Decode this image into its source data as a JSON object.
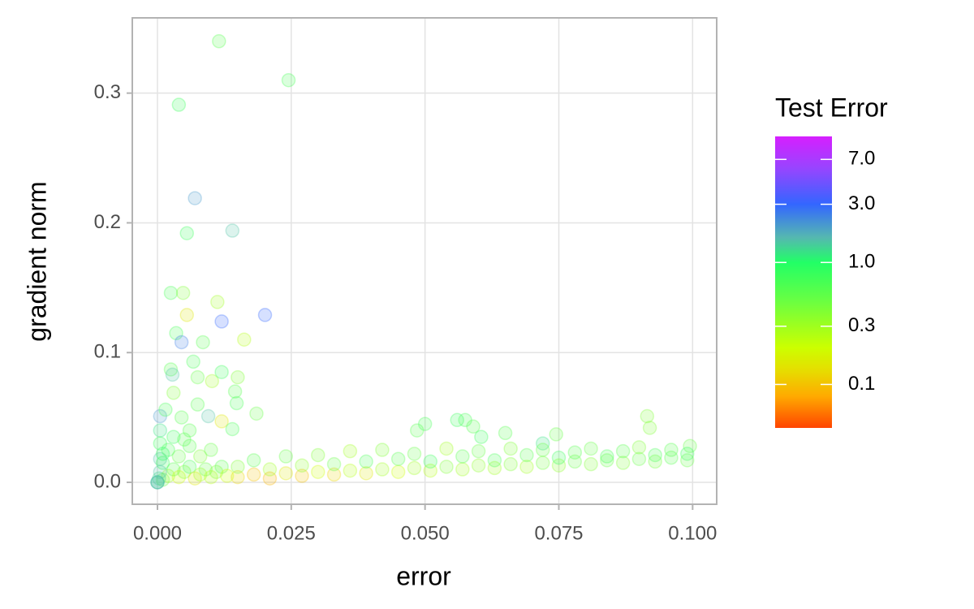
{
  "chart_data": {
    "type": "scatter",
    "x_label": "error",
    "y_label": "gradient norm",
    "legend_title": "Test Error",
    "xlim": [
      -0.0047,
      0.1045
    ],
    "ylim": [
      -0.0169,
      0.358
    ],
    "xticks": [
      {
        "value": 0,
        "label": "0.000"
      },
      0.025,
      {
        "value": 0.05,
        "label": "0.050"
      },
      0.075,
      {
        "value": 0.1,
        "label": "0.100"
      }
    ],
    "yticks": [
      {
        "value": 0,
        "label": "0.0"
      },
      0.1,
      0.2,
      0.3
    ],
    "grid": true,
    "color_log_scale": true,
    "color_lim": [
      0.044,
      10.8
    ],
    "color_ticks": [
      {
        "value": 7,
        "label": "7.0"
      },
      {
        "value": 3,
        "label": "3.0"
      },
      {
        "value": 1,
        "label": "1.0"
      },
      0.3,
      0.1
    ],
    "colorscale": [
      {
        "value": 0.044,
        "color": "#ff4400"
      },
      {
        "value": 0.08,
        "color": "#ffaa00"
      },
      {
        "value": 0.13,
        "color": "#e6dd00"
      },
      {
        "value": 0.2,
        "color": "#ccff00"
      },
      {
        "value": 0.5,
        "color": "#66ff44"
      },
      {
        "value": 1.0,
        "color": "#22ff66"
      },
      {
        "value": 1.6,
        "color": "#55b8b0"
      },
      {
        "value": 3.0,
        "color": "#3366ff"
      },
      {
        "value": 6.0,
        "color": "#9944ff"
      },
      {
        "value": 10.8,
        "color": "#d61fff"
      }
    ],
    "opacity": 0.2,
    "x": [
      0.0115,
      0.0245,
      0.004,
      0.007,
      0.0055,
      0.014,
      0.0025,
      0.0048,
      0.0055,
      0.0112,
      0.0201,
      0.012,
      0.0035,
      0.0045,
      0.0162,
      0.0067,
      0.0085,
      0.0025,
      0.0028,
      0.0075,
      0.0102,
      0.012,
      0.015,
      0.003,
      0.0145,
      0.0095,
      0.0005,
      0.0075,
      0.0148,
      0.0185,
      0.012,
      0.014,
      0.006,
      0.0045,
      0.0015,
      0.0005,
      0.0005,
      0.0005,
      0.0485,
      0.05,
      0.056,
      0.0575,
      0.059,
      0.0605,
      0.065,
      0.072,
      0.0745,
      0.0915,
      0.092,
      0.0995,
      0.015,
      0.018,
      0.021,
      0.024,
      0.027,
      0.03,
      0.033,
      0.036,
      0.039,
      0.042,
      0.045,
      0.048,
      0.051,
      0.054,
      0.057,
      0.06,
      0.063,
      0.066,
      0.069,
      0.072,
      0.075,
      0.078,
      0.081,
      0.084,
      0.087,
      0.09,
      0.093,
      0.096,
      0.099,
      0.015,
      0.018,
      0.021,
      0.024,
      0.027,
      0.03,
      0.033,
      0.036,
      0.039,
      0.042,
      0.045,
      0.048,
      0.051,
      0.054,
      0.057,
      0.06,
      0.063,
      0.066,
      0.069,
      0.072,
      0.075,
      0.078,
      0.081,
      0.084,
      0.087,
      0.09,
      0.093,
      0.096,
      0.099,
      0.001,
      0.002,
      0.003,
      0.001,
      0.004,
      0.005,
      0.006,
      0.007,
      0.008,
      0.009,
      0.01,
      0.011,
      0.012,
      0.013,
      0.002,
      0.004,
      0.006,
      0.003,
      0.0005,
      0.001,
      0.008,
      0.01,
      0.005,
      0.0003,
      0,
      0,
      0
    ],
    "y": [
      0.34,
      0.31,
      0.291,
      0.219,
      0.192,
      0.194,
      0.146,
      0.146,
      0.129,
      0.139,
      0.129,
      0.124,
      0.115,
      0.108,
      0.11,
      0.093,
      0.108,
      0.087,
      0.083,
      0.081,
      0.078,
      0.085,
      0.081,
      0.069,
      0.07,
      0.051,
      0.051,
      0.06,
      0.061,
      0.053,
      0.047,
      0.041,
      0.04,
      0.05,
      0.056,
      0.04,
      0.03,
      0.018,
      0.04,
      0.045,
      0.048,
      0.048,
      0.043,
      0.035,
      0.038,
      0.03,
      0.037,
      0.051,
      0.042,
      0.028,
      0.004,
      0.006,
      0.003,
      0.007,
      0.005,
      0.008,
      0.006,
      0.009,
      0.007,
      0.01,
      0.008,
      0.011,
      0.009,
      0.012,
      0.01,
      0.013,
      0.011,
      0.014,
      0.012,
      0.015,
      0.013,
      0.016,
      0.014,
      0.017,
      0.015,
      0.018,
      0.016,
      0.019,
      0.017,
      0.012,
      0.017,
      0.01,
      0.02,
      0.013,
      0.021,
      0.014,
      0.024,
      0.016,
      0.025,
      0.018,
      0.022,
      0.016,
      0.026,
      0.02,
      0.024,
      0.017,
      0.026,
      0.021,
      0.025,
      0.019,
      0.023,
      0.026,
      0.02,
      0.024,
      0.027,
      0.021,
      0.025,
      0.022,
      0.002,
      0.005,
      0.01,
      0.015,
      0.004,
      0.008,
      0.012,
      0.003,
      0.006,
      0.01,
      0.004,
      0.008,
      0.012,
      0.005,
      0.025,
      0.02,
      0.028,
      0.035,
      0.008,
      0.022,
      0.02,
      0.025,
      0.033,
      0.003,
      0,
      0,
      0
    ],
    "test_error": [
      0.6,
      0.7,
      0.8,
      2,
      0.8,
      1.5,
      0.7,
      0.4,
      0.15,
      0.3,
      3,
      3,
      0.7,
      2.5,
      0.25,
      0.7,
      0.6,
      0.6,
      1.5,
      0.5,
      0.3,
      0.8,
      0.4,
      0.4,
      0.6,
      1.5,
      2,
      0.6,
      0.7,
      0.5,
      0.15,
      0.7,
      0.6,
      0.6,
      0.7,
      1.2,
      0.8,
      1.5,
      0.6,
      0.7,
      0.8,
      0.7,
      0.6,
      0.8,
      0.6,
      1.2,
      0.5,
      0.4,
      0.4,
      0.5,
      0.12,
      0.1,
      0.09,
      0.15,
      0.1,
      0.2,
      0.12,
      0.25,
      0.15,
      0.3,
      0.2,
      0.3,
      0.25,
      0.4,
      0.3,
      0.35,
      0.3,
      0.4,
      0.3,
      0.45,
      0.35,
      0.5,
      0.4,
      0.5,
      0.4,
      0.5,
      0.45,
      0.6,
      0.5,
      0.4,
      0.6,
      0.3,
      0.5,
      0.35,
      0.4,
      0.5,
      0.3,
      0.7,
      0.4,
      0.6,
      0.5,
      0.8,
      0.3,
      0.6,
      0.5,
      0.7,
      0.4,
      0.6,
      0.5,
      0.8,
      0.6,
      0.5,
      0.7,
      0.6,
      0.4,
      0.7,
      0.6,
      0.8,
      0.5,
      0.3,
      0.6,
      0.8,
      0.2,
      0.4,
      0.7,
      0.15,
      0.3,
      0.5,
      0.25,
      0.4,
      0.6,
      0.2,
      0.7,
      0.5,
      0.6,
      0.8,
      1.5,
      0.9,
      0.4,
      0.5,
      0.6,
      1.3,
      1.5,
      1.5,
      1.5
    ]
  }
}
